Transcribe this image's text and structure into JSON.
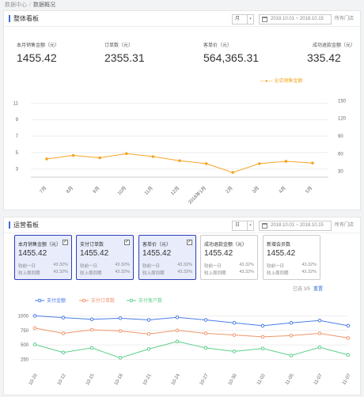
{
  "breadcrumb": {
    "root": "数据中心",
    "separator": "/",
    "current": "数据概况"
  },
  "overview": {
    "title": "整体看板",
    "period_select": "月",
    "date_range": "2018.10.01 ~ 2018.10.15",
    "store_select": "所有门店",
    "kpis": [
      {
        "label": "本月销售金额（元）",
        "value": "1455.42"
      },
      {
        "label": "订单数（元）",
        "value": "2355.31"
      },
      {
        "label": "客单价（元）",
        "value": "564,365.31"
      },
      {
        "label": "成功退款金额（元）",
        "value": "335.42"
      }
    ]
  },
  "operations": {
    "title": "运营看板",
    "period_select": "日",
    "date_range": "2018.10.01 ~ 2018.10.15",
    "store_select": "所有门店",
    "cards": [
      {
        "label": "本月销售金额（元）",
        "value": "1455.42",
        "checked": true,
        "rows": [
          [
            "较前一日",
            "43.32%"
          ],
          [
            "较上周同期",
            "43.32%"
          ]
        ]
      },
      {
        "label": "支付订单数",
        "value": "1455.42",
        "checked": true,
        "rows": [
          [
            "较前一日",
            "43.32%"
          ],
          [
            "较上周同期",
            "43.32%"
          ]
        ]
      },
      {
        "label": "客单价（元）",
        "value": "1455.42",
        "checked": true,
        "rows": [
          [
            "较前一日",
            "43.32%"
          ],
          [
            "较上周同期",
            "43.32%"
          ]
        ]
      },
      {
        "label": "成功退款金额（元）",
        "value": "1455.42",
        "checked": false,
        "rows": [
          [
            "较前一日",
            "43.32%"
          ],
          [
            "较上周同期",
            "43.32%"
          ]
        ]
      },
      {
        "label": "新增会员数",
        "value": "1455.42",
        "checked": false,
        "rows": [
          [
            "较前一日",
            "43.32%"
          ],
          [
            "较上周同期",
            "43.32%"
          ]
        ]
      }
    ],
    "selection_info": "已选 3/5",
    "reset_label": "重置"
  },
  "colors": {
    "accent": "#3a6fd8",
    "orange": "#f5a623",
    "salmon": "#f0956b",
    "green": "#5ccf8a",
    "blue": "#4a7de8",
    "selected_border": "#2c3fb8"
  },
  "chart_data": [
    {
      "type": "line",
      "title": "",
      "categories": [
        "7月",
        "8月",
        "9月",
        "10月",
        "11月",
        "12月",
        "2018年1月",
        "2月",
        "3月",
        "4月",
        "5月"
      ],
      "series": [
        {
          "name": "全店销售金额",
          "values": [
            51,
            57,
            53,
            60,
            55,
            48,
            43,
            28,
            43,
            47,
            44
          ],
          "axis": "right"
        }
      ],
      "y_left": {
        "ticks": [
          "3",
          "5",
          "7",
          "9",
          "11"
        ],
        "ylim": [
          2,
          12
        ]
      },
      "y_right": {
        "ticks": [
          "30",
          "60",
          "90",
          "120",
          "150"
        ],
        "ylim": [
          20,
          160
        ]
      },
      "legend": "top-right",
      "grid": true
    },
    {
      "type": "line",
      "title": "",
      "categories": [
        "10-20",
        "10-12",
        "10-15",
        "10-18",
        "10-21",
        "10-24",
        "10-27",
        "10-30",
        "11-02",
        "11-05",
        "11-07",
        "11-07"
      ],
      "series": [
        {
          "name": "支付金额",
          "values": [
            1000,
            970,
            940,
            960,
            930,
            975,
            930,
            880,
            830,
            880,
            920,
            830
          ]
        },
        {
          "name": "支付订单数",
          "values": [
            790,
            700,
            760,
            740,
            690,
            750,
            700,
            670,
            640,
            660,
            700,
            620
          ]
        },
        {
          "name": "支付客户数",
          "values": [
            510,
            370,
            450,
            280,
            430,
            560,
            450,
            390,
            440,
            320,
            460,
            330
          ]
        }
      ],
      "y_ticks": [
        "250",
        "500",
        "750",
        "1000"
      ],
      "ylim": [
        150,
        1100
      ],
      "legend": "top-left",
      "grid": true
    }
  ]
}
